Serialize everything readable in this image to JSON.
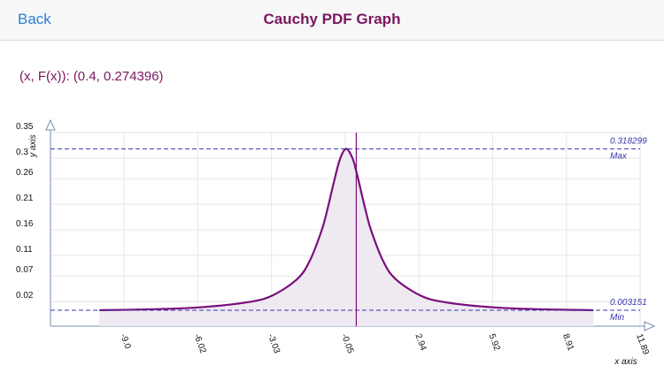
{
  "header": {
    "back": "Back",
    "title": "Cauchy PDF Graph"
  },
  "readout": "(x, F(x)): (0.4, 0.274396)",
  "chart_data": {
    "type": "line",
    "y_label": "y axis",
    "x_label": "x axis",
    "x": [
      -10,
      -8,
      -6,
      -4,
      -3,
      -2,
      -1.5,
      -1,
      -0.75,
      -0.5,
      -0.25,
      0,
      0.25,
      0.4,
      0.5,
      0.75,
      1,
      1.5,
      2,
      3,
      4,
      6,
      8,
      10
    ],
    "series": [
      {
        "name": "F(x)",
        "color": "#7b0e7b",
        "values": [
          0.003152,
          0.004897,
          0.008603,
          0.018724,
          0.031831,
          0.063662,
          0.097942,
          0.159155,
          0.203718,
          0.254648,
          0.299586,
          0.31831,
          0.299586,
          0.274396,
          0.254648,
          0.203718,
          0.159155,
          0.097942,
          0.063662,
          0.031831,
          0.018724,
          0.008603,
          0.004897,
          0.003152
        ]
      }
    ],
    "xlim": [
      -11.98,
      11.89
    ],
    "xticks": [
      {
        "value": -9,
        "label": "-9.0"
      },
      -6.02,
      -3.03,
      -0.05,
      2.94,
      5.92,
      8.91,
      11.89
    ],
    "ylim": [
      -0.028,
      0.35
    ],
    "yticks": [
      0.02,
      0.07,
      0.11,
      0.16,
      0.21,
      0.26,
      0.3,
      0.35
    ],
    "grid": true,
    "max_line": {
      "value": 0.318299,
      "label": "Max"
    },
    "min_line": {
      "value": 0.003151,
      "label": "Min"
    },
    "cursor_x": 0.4,
    "fill_color": "#efe9f2",
    "guide_color": "#3434b0"
  }
}
